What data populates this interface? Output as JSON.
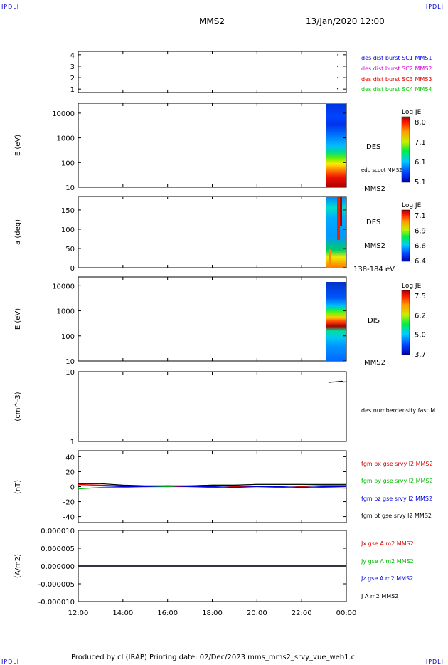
{
  "header": {
    "corner_label": "IPDLI",
    "title": "MMS2",
    "datetime": "13/Jan/2020 12:00"
  },
  "footer": {
    "text": "Produced by cl (IRAP)   Printing date: 02/Dec/2023   mms_mms2_srvy_vue_web1.cl"
  },
  "time_axis": {
    "ticks": [
      "12:00",
      "14:00",
      "16:00",
      "18:00",
      "20:00",
      "22:00",
      "00:00"
    ],
    "hours": [
      12,
      14,
      16,
      18,
      20,
      22,
      24
    ],
    "range": [
      12,
      24
    ]
  },
  "chart_data": [
    {
      "type": "scatter",
      "panel": "burst-flags",
      "ylim": [
        0.7,
        4.3
      ],
      "ytick_labels": [
        "1",
        "2",
        "3",
        "4"
      ],
      "ytick_values": [
        1,
        2,
        3,
        4
      ],
      "series": [
        {
          "name": "des dist burst SC1 MMS1",
          "color": "#0000dd",
          "points": [
            [
              23.62,
              1.05
            ]
          ]
        },
        {
          "name": "des dist burst SC2 MMS2",
          "color": "#dd00dd",
          "points": [
            [
              23.62,
              2.0
            ]
          ]
        },
        {
          "name": "des dist burst SC3 MMS3",
          "color": "#dd0000",
          "points": [
            [
              23.62,
              3.0
            ]
          ]
        },
        {
          "name": "des dist burst SC4 MMS4",
          "color": "#00cc00",
          "points": [
            [
              23.62,
              4.0
            ]
          ]
        }
      ]
    },
    {
      "type": "heatmap",
      "panel": "des-energy",
      "ylabel": "E (eV)",
      "ytick_labels": [
        "10",
        "100",
        "1000",
        "10000"
      ],
      "ytick_values": [
        1,
        2,
        3,
        4
      ],
      "ylim_log10": [
        1,
        4.4
      ],
      "data_time_range": [
        23.1,
        24.0
      ],
      "right_labels": [
        "DES",
        "edp scpot MMS2",
        "MMS2"
      ],
      "colorbar": {
        "title": "Log JE",
        "ticks": [
          "8.0",
          "7.1",
          "6.1",
          "5.1"
        ]
      }
    },
    {
      "type": "heatmap",
      "panel": "des-pitch",
      "ylabel": "a (deg)",
      "ytick_labels": [
        "0",
        "50",
        "100",
        "150"
      ],
      "ytick_values": [
        0,
        50,
        100,
        150
      ],
      "ylim": [
        0,
        185
      ],
      "data_time_range": [
        23.1,
        24.0
      ],
      "right_labels": [
        "DES",
        "MMS2",
        "138-184 eV"
      ],
      "colorbar": {
        "title": "Log JE",
        "ticks": [
          "7.1",
          "6.9",
          "6.6",
          "6.4"
        ]
      }
    },
    {
      "type": "heatmap",
      "panel": "dis-energy",
      "ylabel": "E (eV)",
      "ytick_labels": [
        "10",
        "100",
        "1000",
        "10000"
      ],
      "ytick_values": [
        1,
        2,
        3,
        4
      ],
      "ylim_log10": [
        1,
        4.35
      ],
      "data_time_range": [
        23.1,
        24.0
      ],
      "right_labels": [
        "DIS",
        "MMS2"
      ],
      "colorbar": {
        "title": "Log JE",
        "ticks": [
          "7.5",
          "6.2",
          "5.0",
          "3.7"
        ]
      }
    },
    {
      "type": "line",
      "panel": "density",
      "ylabel": "(cm^-3)",
      "ytick_labels": [
        "1",
        "10"
      ],
      "ytick_values": [
        0,
        1
      ],
      "ylim_log10": [
        0,
        1
      ],
      "series": [
        {
          "name": "des numberdensity fast M",
          "color": "#000000",
          "points": [
            [
              23.2,
              7.0
            ],
            [
              23.35,
              7.1
            ],
            [
              23.5,
              7.15
            ],
            [
              23.65,
              7.2
            ],
            [
              23.8,
              7.3
            ],
            [
              23.9,
              7.1
            ],
            [
              24.0,
              7.2
            ]
          ]
        }
      ]
    },
    {
      "type": "line",
      "panel": "magnetic-field",
      "ylabel": "(nT)",
      "ytick_labels": [
        "-40",
        "-20",
        "0",
        "20",
        "40"
      ],
      "ytick_values": [
        -40,
        -20,
        0,
        20,
        40
      ],
      "ylim": [
        -48,
        48
      ],
      "series": [
        {
          "name": "fgm bx gse srvy l2 MMS2",
          "color": "#dd0000",
          "points": [
            [
              12,
              3
            ],
            [
              13,
              2
            ],
            [
              14,
              1
            ],
            [
              15,
              0
            ],
            [
              16,
              0
            ],
            [
              17,
              0
            ],
            [
              18,
              -1
            ],
            [
              19,
              0
            ],
            [
              20,
              0
            ],
            [
              21,
              -1
            ],
            [
              22,
              0
            ],
            [
              23,
              -1
            ],
            [
              24,
              -2
            ]
          ]
        },
        {
          "name": "fgm by gse srvy l2 MMS2",
          "color": "#00bb00",
          "points": [
            [
              12,
              -3
            ],
            [
              12.5,
              -2
            ],
            [
              13,
              -1
            ],
            [
              14,
              -1
            ],
            [
              15,
              0
            ],
            [
              16,
              0
            ],
            [
              17,
              1
            ],
            [
              18,
              2
            ],
            [
              19,
              2
            ],
            [
              20,
              3
            ],
            [
              21,
              3
            ],
            [
              22,
              3
            ],
            [
              23,
              2
            ],
            [
              24,
              2
            ]
          ]
        },
        {
          "name": "fgm bz gse srvy l2 MMS2",
          "color": "#0000dd",
          "points": [
            [
              12,
              1
            ],
            [
              13,
              1
            ],
            [
              14,
              0
            ],
            [
              15,
              0
            ],
            [
              16,
              1
            ],
            [
              17,
              0
            ],
            [
              18,
              0
            ],
            [
              19,
              -1
            ],
            [
              20,
              0
            ],
            [
              21,
              0
            ],
            [
              22,
              -1
            ],
            [
              23,
              0
            ],
            [
              24,
              0
            ]
          ]
        },
        {
          "name": "fgm bt gse srvy l2 MMS2",
          "color": "#000000",
          "points": [
            [
              12,
              4
            ],
            [
              13,
              4
            ],
            [
              14,
              2
            ],
            [
              15,
              1
            ],
            [
              16,
              1
            ],
            [
              17,
              1
            ],
            [
              18,
              2
            ],
            [
              19,
              2
            ],
            [
              20,
              3
            ],
            [
              21,
              3
            ],
            [
              22,
              3
            ],
            [
              23,
              3
            ],
            [
              24,
              3
            ]
          ]
        }
      ]
    },
    {
      "type": "line",
      "panel": "current-density",
      "ylabel": "(A/m2)",
      "ytick_labels": [
        "-0.000010",
        "-0.000005",
        "0.000000",
        "0.000005",
        "0.000010"
      ],
      "ytick_values": [
        -1e-05,
        -5e-06,
        0,
        5e-06,
        1e-05
      ],
      "ylim": [
        -1e-05,
        1e-05
      ],
      "series": [
        {
          "name": "Jx gse A m2 MMS2",
          "color": "#dd0000",
          "points": [
            [
              12,
              0
            ],
            [
              24,
              0
            ]
          ]
        },
        {
          "name": "Jy gse A m2 MMS2",
          "color": "#00bb00",
          "points": [
            [
              12,
              0
            ],
            [
              24,
              0
            ]
          ]
        },
        {
          "name": "Jz gse A m2 MMS2",
          "color": "#0000dd",
          "points": [
            [
              12,
              0
            ],
            [
              24,
              0
            ]
          ]
        },
        {
          "name": "J A m2 MMS2",
          "color": "#000000",
          "points": [
            [
              12,
              0
            ],
            [
              24,
              0
            ]
          ]
        }
      ]
    }
  ]
}
